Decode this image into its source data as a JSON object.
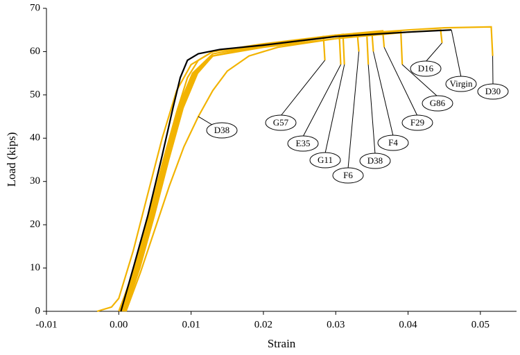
{
  "chart_data": {
    "type": "line",
    "xlabel": "Strain",
    "ylabel": "Load (kips)",
    "xlim": [
      -0.01,
      0.055
    ],
    "ylim": [
      0,
      70
    ],
    "xticks": [
      -0.01,
      {
        "value": 0,
        "label": "0.00"
      },
      0.01,
      0.02,
      0.03,
      0.04,
      0.05
    ],
    "yticks": [
      0,
      10,
      20,
      30,
      40,
      50,
      60,
      70
    ],
    "series": [
      {
        "name": "D30",
        "color": "#f2b300",
        "x": [
          0.0,
          0.002,
          0.004,
          0.006,
          0.008,
          0.0095,
          0.011,
          0.013,
          0.02,
          0.03,
          0.04,
          0.045,
          0.0515,
          0.0517
        ],
        "values": [
          0,
          9,
          21,
          34,
          46,
          54,
          58,
          60,
          61.8,
          63.8,
          65,
          65.5,
          65.7,
          59
        ]
      },
      {
        "name": "D16",
        "color": "#f2b300",
        "x": [
          0.0008,
          0.003,
          0.005,
          0.007,
          0.009,
          0.011,
          0.013,
          0.02,
          0.03,
          0.04,
          0.0445,
          0.0447
        ],
        "values": [
          0,
          11,
          23,
          37,
          49,
          56,
          59,
          61,
          63,
          64.5,
          65,
          62
        ]
      },
      {
        "name": "G86",
        "color": "#f2b300",
        "x": [
          -0.003,
          -0.001,
          0.0,
          0.002,
          0.004,
          0.006,
          0.008,
          0.01,
          0.013,
          0.02,
          0.03,
          0.039,
          0.0392
        ],
        "values": [
          0,
          1,
          3,
          14,
          27,
          40,
          51,
          57,
          60,
          61.5,
          63.5,
          64.8,
          57
        ]
      },
      {
        "name": "F29",
        "color": "#f2b300",
        "x": [
          0.0005,
          0.0025,
          0.0045,
          0.0065,
          0.0085,
          0.0105,
          0.013,
          0.02,
          0.03,
          0.0365,
          0.0367
        ],
        "values": [
          0,
          10,
          22,
          35,
          47,
          55,
          59,
          61.5,
          63.8,
          64.8,
          61
        ]
      },
      {
        "name": "F4",
        "color": "#f2b300",
        "x": [
          0.0006,
          0.0027,
          0.0047,
          0.0067,
          0.0087,
          0.0107,
          0.013,
          0.02,
          0.03,
          0.035,
          0.0352
        ],
        "values": [
          0,
          10,
          22,
          35,
          47,
          55,
          59,
          61.2,
          63.5,
          64.5,
          60
        ]
      },
      {
        "name": "D38",
        "color": "#f2b300",
        "x": [
          0.001,
          0.003,
          0.005,
          0.007,
          0.009,
          0.011,
          0.013,
          0.015,
          0.018,
          0.022,
          0.03,
          0.0343,
          0.0345
        ],
        "values": [
          0,
          9,
          19,
          29,
          38,
          45,
          51,
          55.5,
          59,
          61,
          63,
          64,
          57
        ]
      },
      {
        "name": "F6",
        "color": "#f2b300",
        "x": [
          0.0004,
          0.0024,
          0.0044,
          0.0064,
          0.0084,
          0.0104,
          0.013,
          0.02,
          0.03,
          0.033,
          0.0332
        ],
        "values": [
          0,
          10,
          22,
          35,
          47,
          55,
          59,
          61.3,
          63.5,
          64,
          60
        ]
      },
      {
        "name": "G11",
        "color": "#f2b300",
        "x": [
          0.0007,
          0.0027,
          0.0047,
          0.0067,
          0.0087,
          0.0107,
          0.013,
          0.02,
          0.031,
          0.0312
        ],
        "values": [
          0,
          10,
          22,
          35,
          47,
          55,
          59,
          61.2,
          64,
          57
        ]
      },
      {
        "name": "E35",
        "color": "#f2b300",
        "x": [
          0.0002,
          0.0022,
          0.0042,
          0.0062,
          0.0082,
          0.0102,
          0.013,
          0.02,
          0.0305,
          0.0307
        ],
        "values": [
          0,
          10,
          22,
          35,
          47,
          55,
          59.5,
          61.5,
          63.8,
          57
        ]
      },
      {
        "name": "G57",
        "color": "#f2b300",
        "x": [
          0.0009,
          0.0029,
          0.0049,
          0.0069,
          0.0089,
          0.0109,
          0.013,
          0.02,
          0.0283,
          0.0285
        ],
        "values": [
          0,
          10,
          22,
          35,
          47,
          55,
          59,
          61.3,
          63.5,
          58
        ]
      },
      {
        "name": "Virgin",
        "color": "#000000",
        "x": [
          0.0003,
          0.002,
          0.004,
          0.006,
          0.0075,
          0.0085,
          0.0095,
          0.011,
          0.014,
          0.02,
          0.03,
          0.04,
          0.046
        ],
        "values": [
          0,
          10,
          22,
          36,
          47,
          54,
          58,
          59.5,
          60.5,
          61.5,
          63.5,
          64.5,
          65
        ]
      }
    ]
  }
}
